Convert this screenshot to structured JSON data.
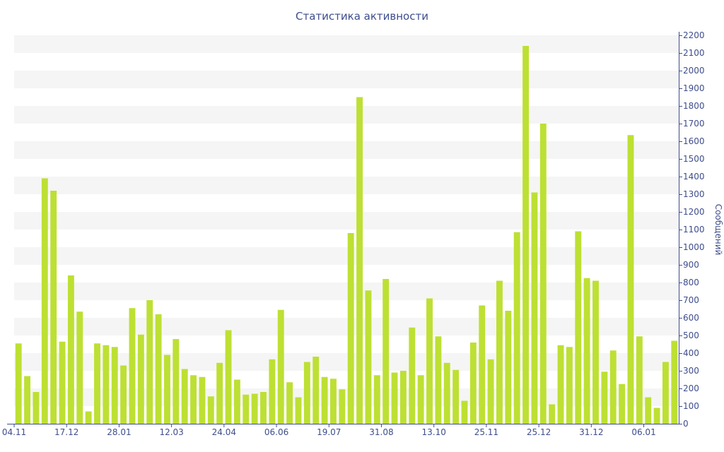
{
  "chart_data": {
    "type": "bar",
    "title": "Статистика активности",
    "ylabel": "Сообщений",
    "xlabel": "",
    "ylim": [
      0,
      2200
    ],
    "y_ticks": [
      0,
      100,
      200,
      300,
      400,
      500,
      600,
      700,
      800,
      900,
      1000,
      1100,
      1200,
      1300,
      1400,
      1500,
      1600,
      1700,
      1800,
      1900,
      2000,
      2100,
      2200
    ],
    "x_tick_labels": [
      {
        "label": "04.11",
        "index": 0
      },
      {
        "label": "17.12",
        "index": 6
      },
      {
        "label": "28.01",
        "index": 12
      },
      {
        "label": "12.03",
        "index": 18
      },
      {
        "label": "24.04",
        "index": 24
      },
      {
        "label": "06.06",
        "index": 30
      },
      {
        "label": "19.07",
        "index": 36
      },
      {
        "label": "31.08",
        "index": 42
      },
      {
        "label": "13.10",
        "index": 48
      },
      {
        "label": "25.11",
        "index": 54
      },
      {
        "label": "25.12",
        "index": 60
      },
      {
        "label": "31.12",
        "index": 66
      },
      {
        "label": "06.01",
        "index": 72
      }
    ],
    "values": [
      455,
      270,
      180,
      1390,
      1320,
      465,
      840,
      635,
      70,
      455,
      445,
      435,
      330,
      655,
      505,
      700,
      620,
      390,
      480,
      310,
      275,
      265,
      155,
      345,
      530,
      250,
      165,
      170,
      180,
      365,
      645,
      235,
      150,
      350,
      380,
      265,
      255,
      195,
      1080,
      1850,
      755,
      275,
      820,
      290,
      300,
      545,
      275,
      710,
      495,
      345,
      305,
      130,
      460,
      670,
      365,
      810,
      640,
      1085,
      2140,
      1310,
      1700,
      110,
      445,
      435,
      1090,
      825,
      810,
      295,
      415,
      225,
      1635,
      495,
      150,
      90,
      350,
      470
    ],
    "grid": "horizontal-bands",
    "colors": {
      "bar": "#bde033",
      "band": "#f5f5f5",
      "axis": "#3d4d8c",
      "text": "#3d4d8c"
    }
  }
}
